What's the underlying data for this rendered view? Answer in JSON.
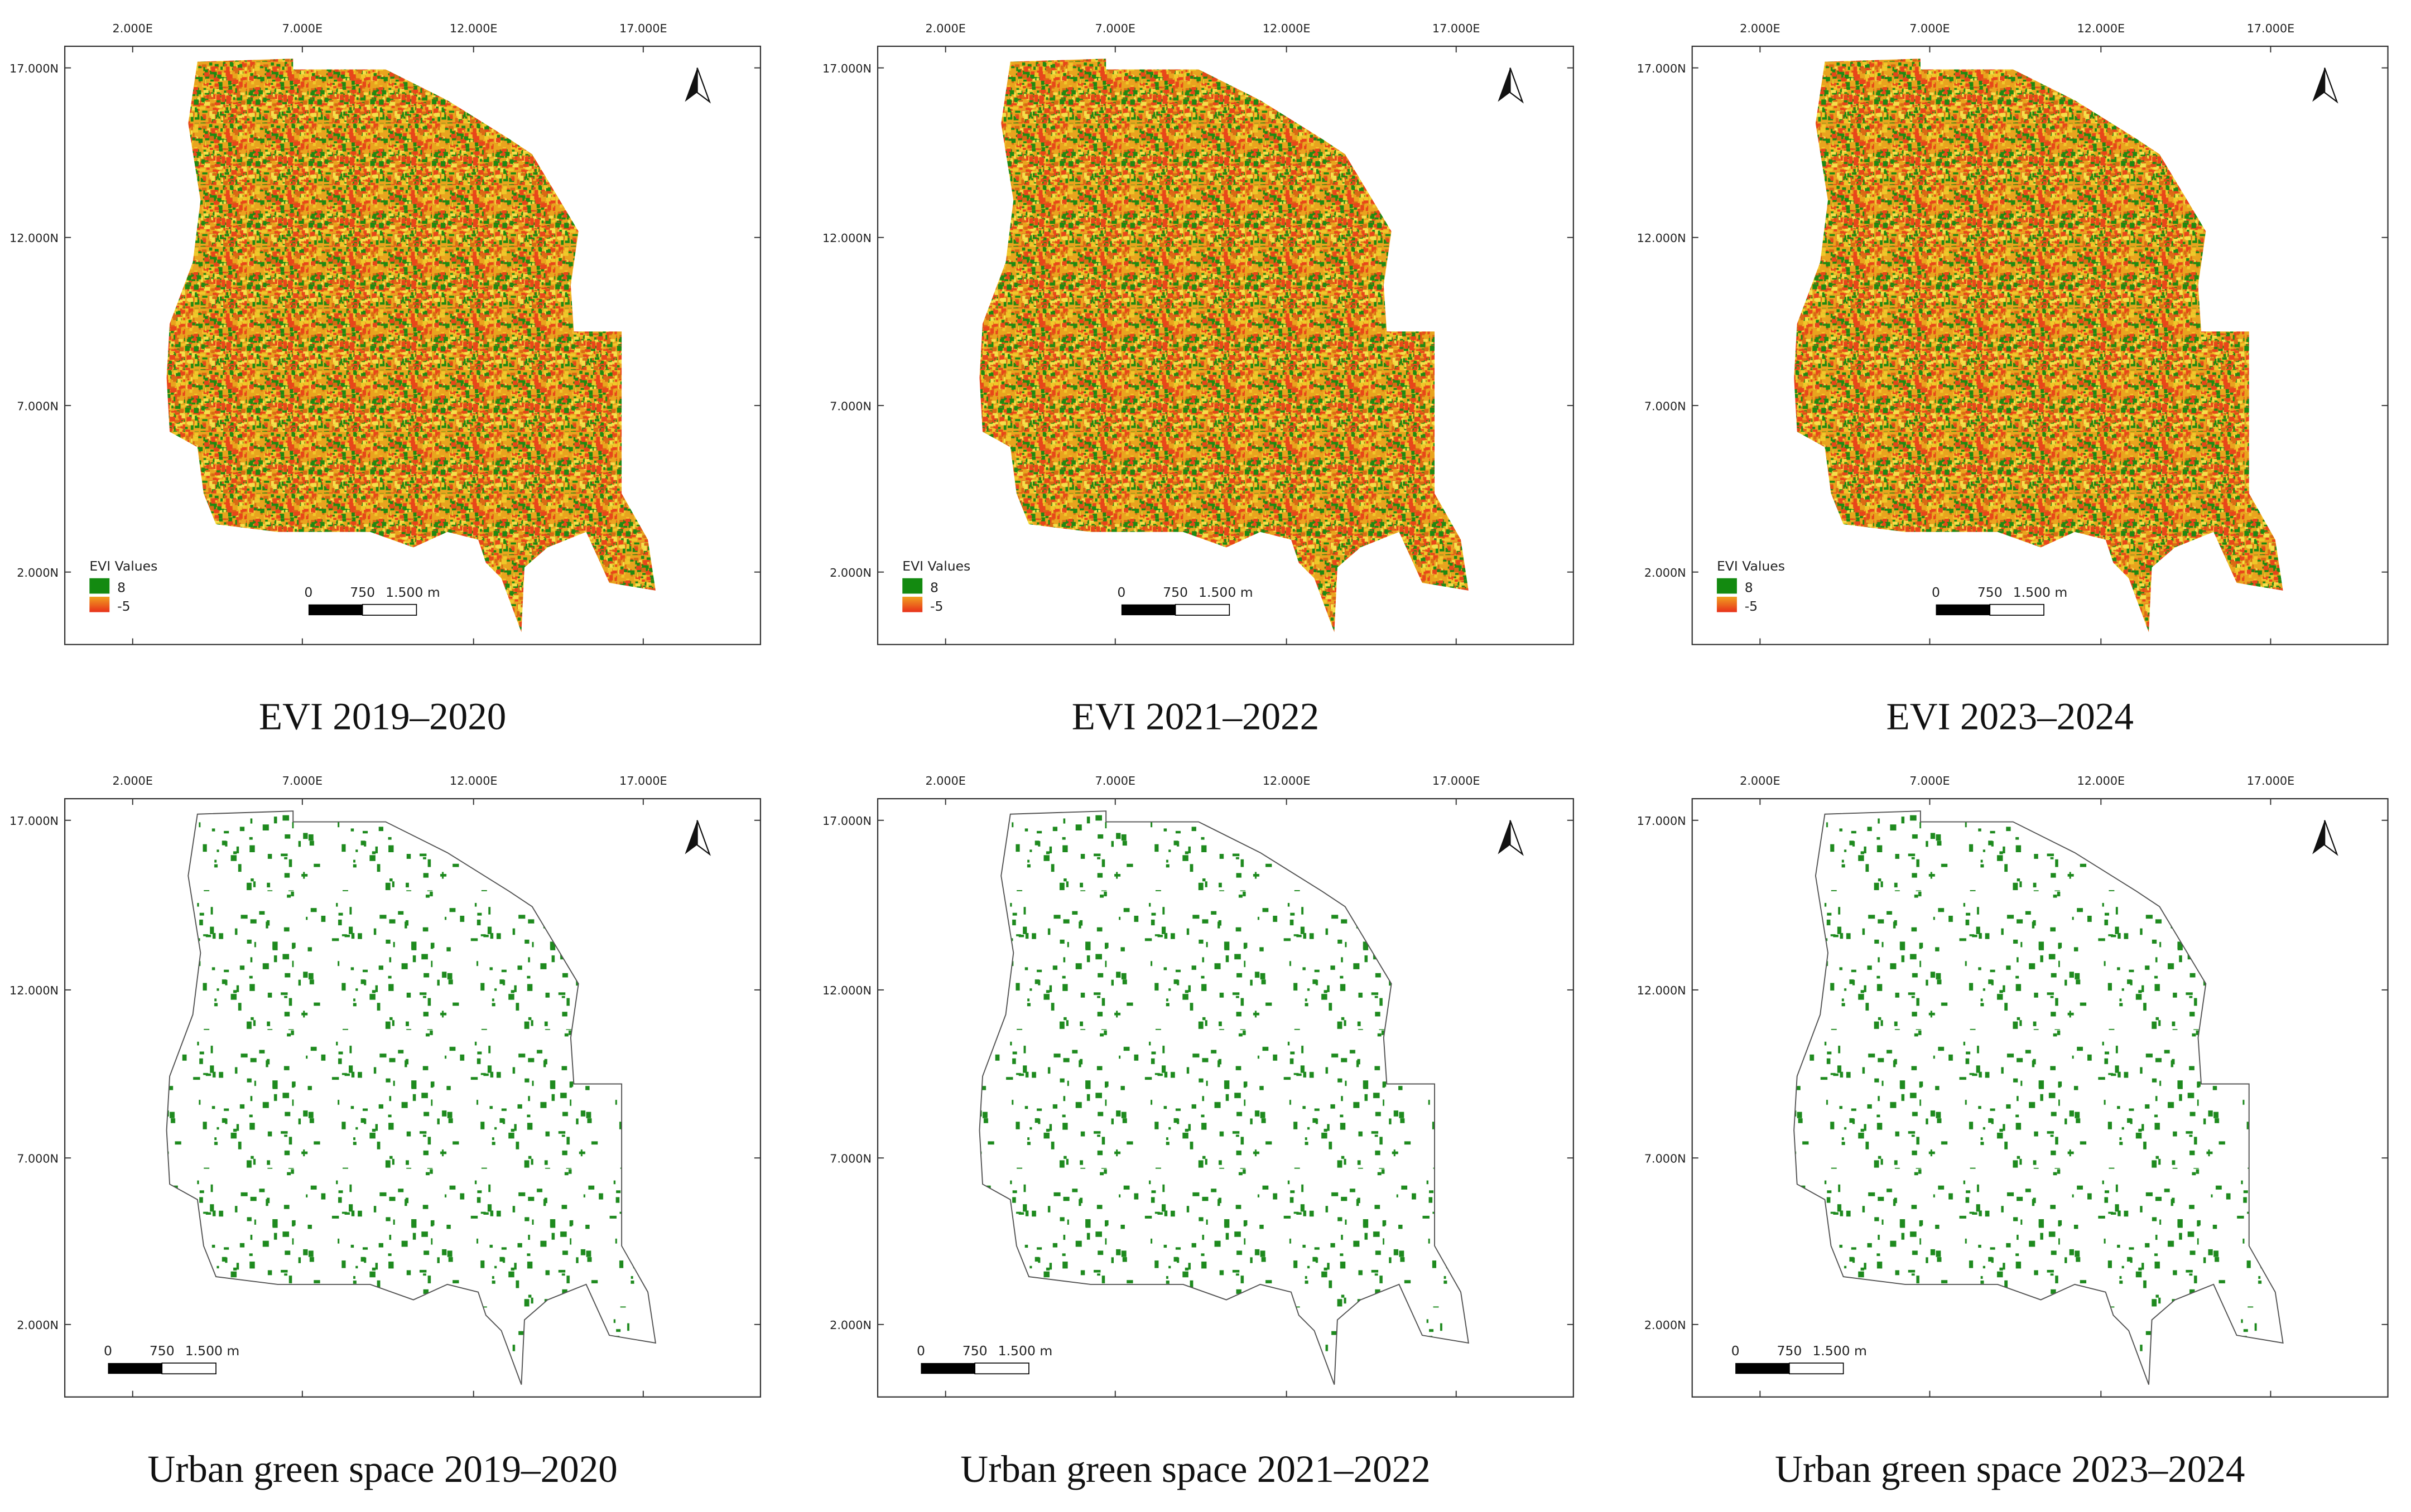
{
  "axes": {
    "x_ticks": [
      "2.000E",
      "7.000E",
      "12.000E",
      "17.000E"
    ],
    "y_ticks": [
      "17.000N",
      "12.000N",
      "7.000N",
      "2.000N"
    ],
    "scale_bar": [
      "0",
      "750",
      "1.500 m"
    ]
  },
  "panels": [
    {
      "caption": "EVI 2019–2020",
      "kind": "evi",
      "legend": {
        "title": "EVI Values",
        "max": 8,
        "min": -5
      }
    },
    {
      "caption": "EVI 2021–2022",
      "kind": "evi",
      "legend": {
        "title": "EVI Values",
        "max": 8,
        "min": -5
      }
    },
    {
      "caption": "EVI 2023–2024",
      "kind": "evi",
      "legend": {
        "title": "EVI Values",
        "max": 8,
        "min": -5
      }
    },
    {
      "caption": "Urban green space 2019–2020",
      "kind": "ugs"
    },
    {
      "caption": "Urban green space 2021–2022",
      "kind": "ugs"
    },
    {
      "caption": "Urban green space 2023–2024",
      "kind": "ugs"
    }
  ]
}
